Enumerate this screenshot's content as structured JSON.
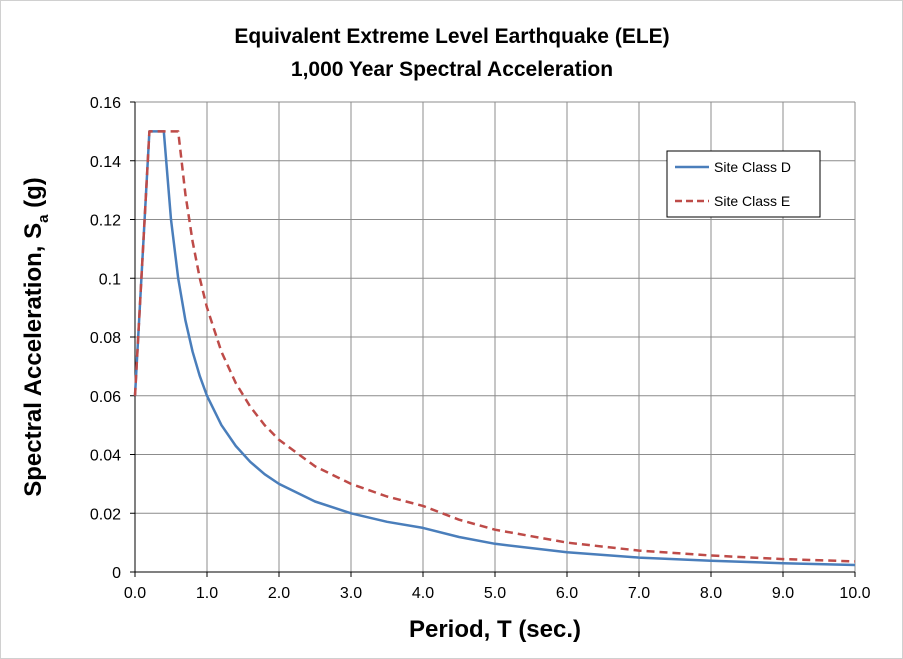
{
  "chart_data": {
    "type": "line",
    "title": [
      "Equivalent Extreme Level Earthquake (ELE)",
      "1,000 Year Spectral Acceleration"
    ],
    "xlabel": "Period, T (sec.)",
    "ylabel_main": "Spectral Acceleration, S",
    "ylabel_sub": "a",
    "ylabel_tail": " (g)",
    "xlim": [
      0,
      10
    ],
    "ylim": [
      0,
      0.16
    ],
    "xticks": [
      "0.0",
      "1.0",
      "2.0",
      "3.0",
      "4.0",
      "5.0",
      "6.0",
      "7.0",
      "8.0",
      "9.0",
      "10.0"
    ],
    "yticks": [
      "0",
      "0.02",
      "0.04",
      "0.06",
      "0.08",
      "0.1",
      "0.12",
      "0.14",
      "0.16"
    ],
    "grid": true,
    "legend_position": "top-right",
    "series": [
      {
        "name": "Site Class D",
        "color": "#4a7ebb",
        "dash": "solid",
        "x": [
          0.0,
          0.2,
          0.4,
          0.5,
          0.6,
          0.7,
          0.8,
          0.9,
          1.0,
          1.2,
          1.4,
          1.6,
          1.8,
          2.0,
          2.5,
          3.0,
          3.5,
          4.0,
          4.5,
          5.0,
          6.0,
          7.0,
          8.0,
          9.0,
          10.0
        ],
        "y": [
          0.06,
          0.15,
          0.15,
          0.12,
          0.1,
          0.0857,
          0.075,
          0.0667,
          0.06,
          0.05,
          0.0429,
          0.0375,
          0.0333,
          0.03,
          0.024,
          0.02,
          0.0171,
          0.015,
          0.0119,
          0.0096,
          0.0067,
          0.0049,
          0.0038,
          0.003,
          0.0024
        ]
      },
      {
        "name": "Site Class E",
        "color": "#be4b48",
        "dash": "dashed",
        "x": [
          0.0,
          0.2,
          0.6,
          0.7,
          0.8,
          0.9,
          1.0,
          1.2,
          1.4,
          1.6,
          1.8,
          2.0,
          2.5,
          3.0,
          3.5,
          4.0,
          4.5,
          5.0,
          6.0,
          7.0,
          8.0,
          9.0,
          10.0
        ],
        "y": [
          0.06,
          0.15,
          0.15,
          0.1286,
          0.1125,
          0.1,
          0.09,
          0.075,
          0.0643,
          0.0563,
          0.05,
          0.045,
          0.036,
          0.03,
          0.0257,
          0.0225,
          0.0178,
          0.0144,
          0.01,
          0.0073,
          0.0056,
          0.0044,
          0.0036
        ]
      }
    ]
  }
}
